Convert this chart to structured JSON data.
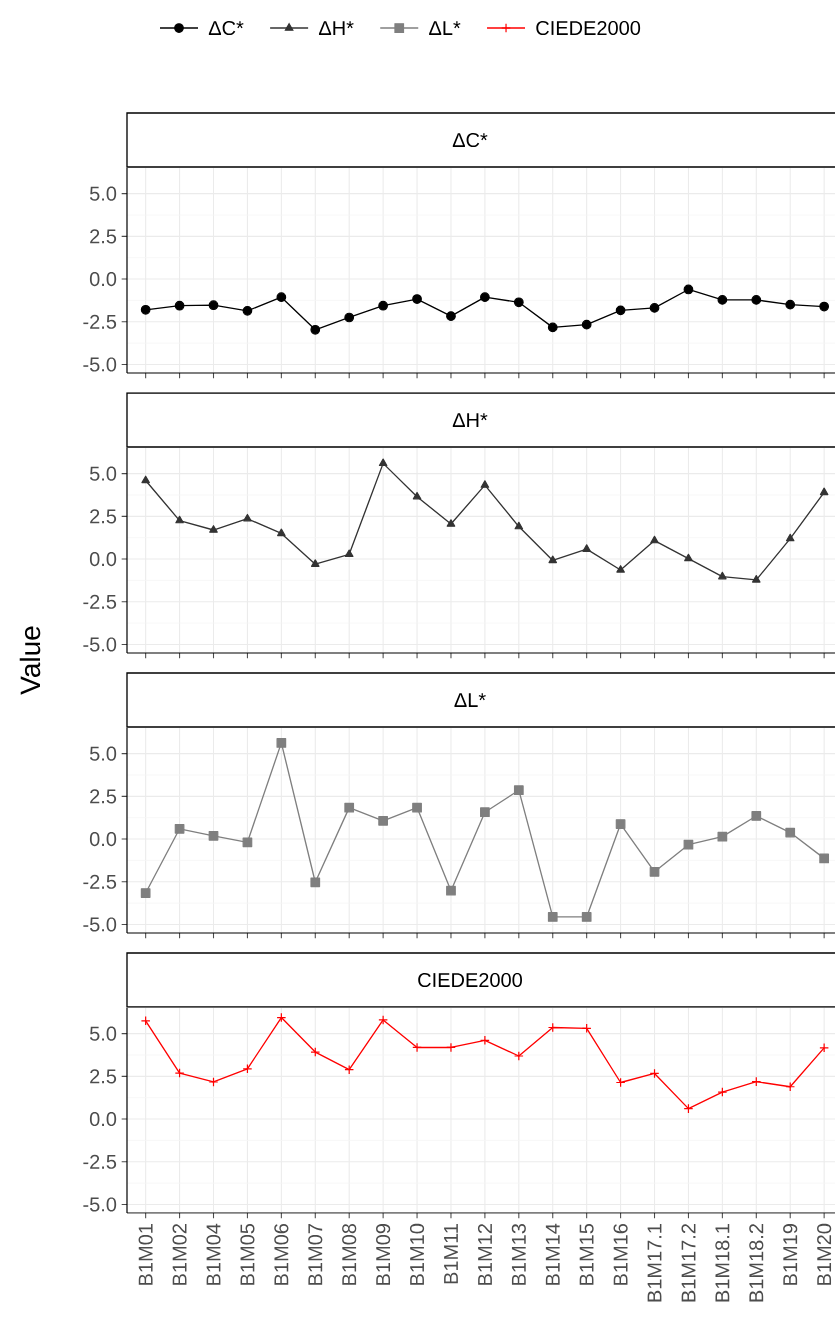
{
  "chart_data": [
    {
      "type": "line",
      "title": "ΔC*",
      "categories": [
        null,
        null,
        null,
        null,
        null,
        null,
        null,
        null,
        null,
        null,
        null,
        null,
        null,
        null,
        null,
        null,
        null,
        null,
        null,
        null,
        null
      ],
      "series": [
        {
          "name": "ΔC*",
          "color": "#000000",
          "values": [
            -1.8,
            -1.56,
            -1.53,
            -1.86,
            -1.06,
            -2.97,
            -2.25,
            -1.56,
            -1.17,
            -2.17,
            -1.06,
            -1.36,
            -2.83,
            -2.67,
            -1.83,
            -1.69,
            -0.61,
            -1.22,
            -1.22,
            -1.5,
            -1.61
          ]
        }
      ],
      "marker": "circle",
      "ylim": [
        -5.5,
        6.5
      ],
      "yticks": [
        {
          "value": -5,
          "label": "-5.0"
        },
        {
          "value": -2.5,
          "label": "-2.5"
        },
        {
          "value": 0,
          "label": "0.0"
        },
        {
          "value": 2.5,
          "label": "2.5"
        },
        {
          "value": 5,
          "label": "5.0"
        }
      ],
      "grid": true,
      "legend": "top",
      "tick_labels": "y"
    },
    {
      "type": "line",
      "title": "ΔH*",
      "categories": [
        null,
        null,
        null,
        null,
        null,
        null,
        null,
        null,
        null,
        null,
        null,
        null,
        null,
        null,
        null,
        null,
        null,
        null,
        null,
        null,
        null
      ],
      "series": [
        {
          "name": "ΔH*",
          "color": "#333333",
          "values": [
            4.6,
            2.25,
            1.7,
            2.36,
            1.5,
            -0.3,
            0.28,
            5.6,
            3.65,
            2.05,
            4.33,
            1.9,
            -0.08,
            0.58,
            -0.64,
            1.08,
            0.03,
            -1.03,
            -1.22,
            1.2,
            3.9
          ]
        }
      ],
      "marker": "triangle",
      "ylim": [
        -5.5,
        6.5
      ],
      "yticks": [
        {
          "value": -5,
          "label": "-5.0"
        },
        {
          "value": -2.5,
          "label": "-2.5"
        },
        {
          "value": 0,
          "label": "0.0"
        },
        {
          "value": 2.5,
          "label": "2.5"
        },
        {
          "value": 5,
          "label": "5.0"
        }
      ],
      "grid": true,
      "legend": "top",
      "tick_labels": "y"
    },
    {
      "type": "line",
      "title": "ΔL*",
      "ylabel": "Value",
      "categories": [
        null,
        null,
        null,
        null,
        null,
        null,
        null,
        null,
        null,
        null,
        null,
        null,
        null,
        null,
        null,
        null,
        null,
        null,
        null,
        null,
        null
      ],
      "series": [
        {
          "name": "ΔL*",
          "color": "#7f7f7f",
          "values": [
            -3.16,
            0.6,
            0.19,
            -0.19,
            5.63,
            -2.53,
            1.84,
            1.07,
            1.84,
            -3.02,
            1.57,
            2.86,
            -4.56,
            -4.56,
            0.88,
            -1.92,
            -0.33,
            0.14,
            1.35,
            0.38,
            -1.13
          ]
        }
      ],
      "marker": "square",
      "ylim": [
        -5.5,
        6.5
      ],
      "yticks": [
        {
          "value": -5,
          "label": "-5.0"
        },
        {
          "value": -2.5,
          "label": "-2.5"
        },
        {
          "value": 0,
          "label": "0.0"
        },
        {
          "value": 2.5,
          "label": "2.5"
        },
        {
          "value": 5,
          "label": "5.0"
        }
      ],
      "grid": true,
      "legend": "top",
      "tick_labels": "y"
    },
    {
      "type": "line",
      "title": "CIEDE2000",
      "categories": [
        "B1M01",
        "B1M02",
        "B1M04",
        "B1M05",
        "B1M06",
        "B1M07",
        "B1M08",
        "B1M09",
        "B1M10",
        "B1M11",
        "B1M12",
        "B1M13",
        "B1M14",
        "B1M15",
        "B1M16",
        "B1M17.1",
        "B1M17.2",
        "B1M18.1",
        "B1M18.2",
        "B1M19",
        "B1M20"
      ],
      "series": [
        {
          "name": "CIEDE2000",
          "color": "#ff0000",
          "values": [
            5.75,
            2.69,
            2.17,
            2.94,
            5.94,
            3.92,
            2.89,
            5.8,
            4.19,
            4.19,
            4.61,
            3.69,
            5.36,
            5.31,
            2.14,
            2.67,
            0.61,
            1.58,
            2.19,
            1.89,
            4.17
          ]
        }
      ],
      "marker": "cross",
      "ylim": [
        -5.5,
        6.5
      ],
      "yticks": [
        {
          "value": -5,
          "label": "-5.0"
        },
        {
          "value": -2.5,
          "label": "-2.5"
        },
        {
          "value": 0,
          "label": "0.0"
        },
        {
          "value": 2.5,
          "label": "2.5"
        },
        {
          "value": 5,
          "label": "5.0"
        }
      ],
      "grid": true,
      "legend": "top"
    }
  ]
}
